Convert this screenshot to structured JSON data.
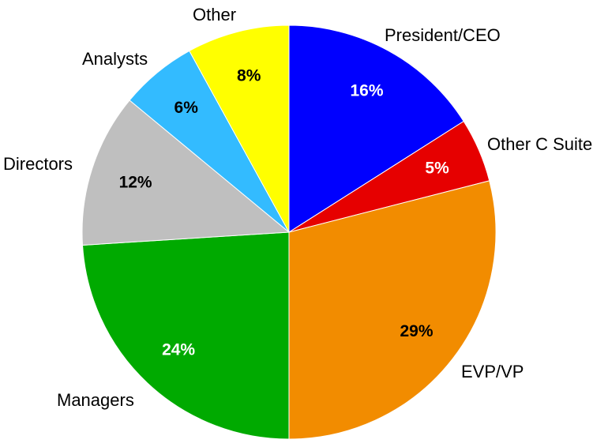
{
  "chart_data": {
    "type": "pie",
    "title": "",
    "legend": "none",
    "slices": [
      {
        "label": "President/CEO",
        "value": 16,
        "value_label": "16%",
        "color": "#0000FF",
        "value_label_color": "#FFFFFF"
      },
      {
        "label": "Other C Suite",
        "value": 5,
        "value_label": "5%",
        "color": "#E60000",
        "value_label_color": "#FFFFFF"
      },
      {
        "label": "EVP/VP",
        "value": 29,
        "value_label": "29%",
        "color": "#F28C00",
        "value_label_color": "#000000"
      },
      {
        "label": "Managers",
        "value": 24,
        "value_label": "24%",
        "color": "#00AA00",
        "value_label_color": "#FFFFFF"
      },
      {
        "label": "Directors",
        "value": 12,
        "value_label": "12%",
        "color": "#BFBFBF",
        "value_label_color": "#000000"
      },
      {
        "label": "Analysts",
        "value": 6,
        "value_label": "6%",
        "color": "#33BBFF",
        "value_label_color": "#000000"
      },
      {
        "label": "Other",
        "value": 8,
        "value_label": "8%",
        "color": "#FFFF00",
        "value_label_color": "#000000"
      }
    ]
  }
}
